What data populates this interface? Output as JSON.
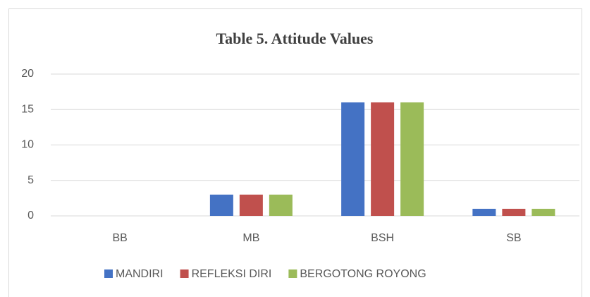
{
  "chart_data": {
    "type": "bar",
    "title": "Table 5. Attitude Values",
    "categories": [
      "BB",
      "MB",
      "BSH",
      "SB"
    ],
    "series": [
      {
        "name": "MANDIRI",
        "color": "#4472c4",
        "values": [
          0,
          3,
          16,
          1
        ]
      },
      {
        "name": "REFLEKSI DIRI",
        "color": "#c0504d",
        "values": [
          0,
          3,
          16,
          1
        ]
      },
      {
        "name": "BERGOTONG ROYONG",
        "color": "#9bbb59",
        "values": [
          0,
          3,
          16,
          1
        ]
      }
    ],
    "ylim": [
      0,
      20
    ],
    "yticks": [
      0,
      5,
      10,
      15,
      20
    ],
    "grid": true,
    "legend": "bottom"
  }
}
